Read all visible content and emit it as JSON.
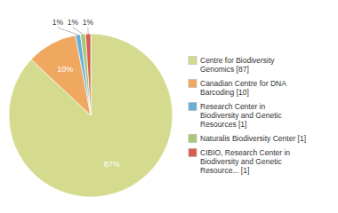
{
  "chart_data": {
    "type": "pie",
    "categories": [
      "Centre for Biodiversity\nGenomics [87]",
      "Canadian Centre for DNA\nBarcoding [10]",
      "Research Center in\nBiodiversity and Genetic\nResources [1]",
      "Naturalis Biodiversity Center [1]",
      "CIBIO, Research Center in\nBiodiversity and Genetic\nResource... [1]"
    ],
    "values": [
      87,
      10,
      1,
      1,
      1
    ],
    "value_labels": [
      "87%",
      "10%",
      "1%",
      "1%",
      "1%"
    ],
    "colors": [
      "#d4db8e",
      "#f0a860",
      "#6baed6",
      "#a8c87a",
      "#d45f4e"
    ],
    "data_labels": true,
    "legend": "right"
  }
}
